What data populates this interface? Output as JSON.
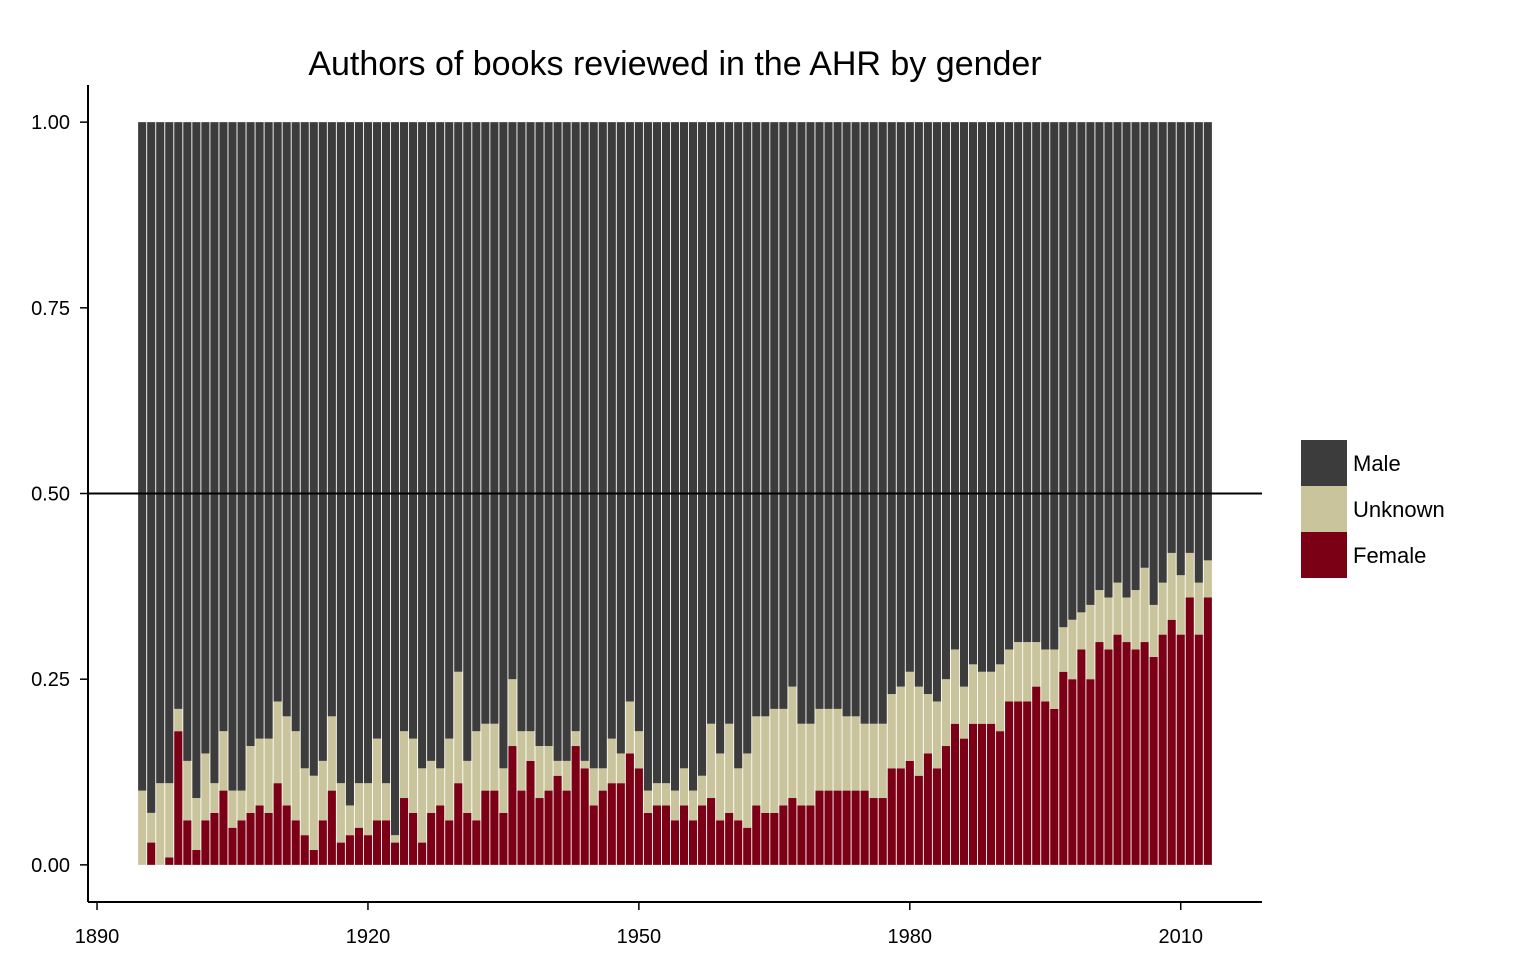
{
  "chart_data": {
    "type": "bar",
    "stacked": true,
    "normalized": true,
    "title": "Authors of books reviewed in the AHR by gender",
    "xlabel": "",
    "ylabel": "",
    "xlim": [
      1889,
      2019
    ],
    "ylim": [
      -0.05,
      1.05
    ],
    "x_ticks": [
      "1890",
      "1920",
      "1950",
      "1980",
      "2010"
    ],
    "y_ticks": [
      "0.00",
      "0.25",
      "0.50",
      "0.75",
      "1.00"
    ],
    "reference_line": 0.5,
    "legend_position": "right",
    "x": [
      1895,
      1896,
      1897,
      1898,
      1899,
      1900,
      1901,
      1902,
      1903,
      1904,
      1905,
      1906,
      1907,
      1908,
      1909,
      1910,
      1911,
      1912,
      1913,
      1914,
      1915,
      1916,
      1917,
      1918,
      1919,
      1920,
      1921,
      1922,
      1923,
      1924,
      1925,
      1926,
      1927,
      1928,
      1929,
      1930,
      1931,
      1932,
      1933,
      1934,
      1935,
      1936,
      1937,
      1938,
      1939,
      1940,
      1941,
      1942,
      1943,
      1944,
      1945,
      1946,
      1947,
      1948,
      1949,
      1950,
      1951,
      1952,
      1953,
      1954,
      1955,
      1956,
      1957,
      1958,
      1959,
      1960,
      1961,
      1962,
      1963,
      1964,
      1965,
      1966,
      1967,
      1968,
      1969,
      1970,
      1971,
      1972,
      1973,
      1974,
      1975,
      1976,
      1977,
      1978,
      1979,
      1980,
      1981,
      1982,
      1983,
      1984,
      1985,
      1986,
      1987,
      1988,
      1989,
      1990,
      1991,
      1992,
      1993,
      1994,
      1995,
      1996,
      1997,
      1998,
      1999,
      2000,
      2001,
      2002,
      2003,
      2004,
      2005,
      2006,
      2007,
      2008,
      2009,
      2010,
      2011,
      2012,
      2013
    ],
    "series": [
      {
        "name": "Female",
        "color": "#7b0016",
        "values": [
          0.0,
          0.03,
          0.0,
          0.01,
          0.18,
          0.06,
          0.02,
          0.06,
          0.07,
          0.1,
          0.05,
          0.06,
          0.07,
          0.08,
          0.07,
          0.11,
          0.08,
          0.06,
          0.04,
          0.02,
          0.06,
          0.1,
          0.03,
          0.04,
          0.05,
          0.04,
          0.06,
          0.06,
          0.03,
          0.09,
          0.07,
          0.03,
          0.07,
          0.08,
          0.06,
          0.11,
          0.07,
          0.06,
          0.1,
          0.1,
          0.07,
          0.16,
          0.1,
          0.14,
          0.09,
          0.1,
          0.12,
          0.1,
          0.16,
          0.13,
          0.08,
          0.1,
          0.11,
          0.11,
          0.15,
          0.13,
          0.07,
          0.08,
          0.08,
          0.06,
          0.08,
          0.06,
          0.08,
          0.09,
          0.06,
          0.07,
          0.06,
          0.05,
          0.08,
          0.07,
          0.07,
          0.08,
          0.09,
          0.08,
          0.08,
          0.1,
          0.1,
          0.1,
          0.1,
          0.1,
          0.1,
          0.09,
          0.09,
          0.13,
          0.13,
          0.14,
          0.12,
          0.15,
          0.13,
          0.16,
          0.19,
          0.17,
          0.19,
          0.19,
          0.19,
          0.18,
          0.22,
          0.22,
          0.22,
          0.24,
          0.22,
          0.21,
          0.26,
          0.25,
          0.29,
          0.25,
          0.3,
          0.29,
          0.31,
          0.3,
          0.29,
          0.3,
          0.28,
          0.31,
          0.33,
          0.31,
          0.36,
          0.31,
          0.36
        ]
      },
      {
        "name": "Unknown",
        "color": "#c9c49c",
        "values": [
          0.1,
          0.04,
          0.11,
          0.1,
          0.03,
          0.08,
          0.07,
          0.09,
          0.04,
          0.08,
          0.05,
          0.04,
          0.09,
          0.09,
          0.1,
          0.11,
          0.12,
          0.12,
          0.09,
          0.1,
          0.08,
          0.1,
          0.08,
          0.04,
          0.06,
          0.07,
          0.11,
          0.05,
          0.01,
          0.09,
          0.1,
          0.1,
          0.07,
          0.05,
          0.11,
          0.15,
          0.07,
          0.12,
          0.09,
          0.09,
          0.06,
          0.09,
          0.08,
          0.04,
          0.07,
          0.06,
          0.02,
          0.04,
          0.02,
          0.01,
          0.05,
          0.03,
          0.06,
          0.04,
          0.07,
          0.05,
          0.03,
          0.03,
          0.03,
          0.04,
          0.05,
          0.04,
          0.04,
          0.1,
          0.09,
          0.12,
          0.07,
          0.1,
          0.12,
          0.13,
          0.14,
          0.13,
          0.15,
          0.11,
          0.11,
          0.11,
          0.11,
          0.11,
          0.1,
          0.1,
          0.09,
          0.1,
          0.1,
          0.1,
          0.11,
          0.12,
          0.12,
          0.08,
          0.09,
          0.09,
          0.1,
          0.07,
          0.08,
          0.07,
          0.07,
          0.09,
          0.07,
          0.08,
          0.08,
          0.06,
          0.07,
          0.08,
          0.06,
          0.08,
          0.05,
          0.1,
          0.07,
          0.07,
          0.07,
          0.06,
          0.08,
          0.1,
          0.07,
          0.07,
          0.09,
          0.08,
          0.06,
          0.07,
          0.05
        ]
      },
      {
        "name": "Male",
        "color": "#3c3c3c",
        "values": [
          0.9,
          0.93,
          0.89,
          0.89,
          0.79,
          0.86,
          0.91,
          0.85,
          0.89,
          0.82,
          0.9,
          0.9,
          0.84,
          0.83,
          0.83,
          0.78,
          0.8,
          0.82,
          0.87,
          0.88,
          0.86,
          0.8,
          0.89,
          0.92,
          0.89,
          0.89,
          0.83,
          0.89,
          0.96,
          0.82,
          0.83,
          0.87,
          0.86,
          0.87,
          0.83,
          0.74,
          0.86,
          0.82,
          0.81,
          0.81,
          0.87,
          0.75,
          0.82,
          0.82,
          0.84,
          0.84,
          0.86,
          0.86,
          0.82,
          0.86,
          0.87,
          0.87,
          0.83,
          0.85,
          0.78,
          0.82,
          0.9,
          0.89,
          0.89,
          0.9,
          0.87,
          0.9,
          0.88,
          0.81,
          0.85,
          0.81,
          0.87,
          0.85,
          0.8,
          0.8,
          0.79,
          0.79,
          0.76,
          0.81,
          0.81,
          0.79,
          0.79,
          0.79,
          0.8,
          0.8,
          0.81,
          0.81,
          0.81,
          0.77,
          0.76,
          0.74,
          0.76,
          0.77,
          0.78,
          0.75,
          0.71,
          0.76,
          0.73,
          0.74,
          0.74,
          0.73,
          0.71,
          0.7,
          0.7,
          0.7,
          0.71,
          0.71,
          0.68,
          0.67,
          0.66,
          0.65,
          0.63,
          0.64,
          0.62,
          0.64,
          0.63,
          0.6,
          0.65,
          0.62,
          0.58,
          0.61,
          0.58,
          0.62,
          0.59
        ]
      }
    ],
    "legend": [
      {
        "name": "Male",
        "color": "#3c3c3c"
      },
      {
        "name": "Unknown",
        "color": "#c9c49c"
      },
      {
        "name": "Female",
        "color": "#7b0016"
      }
    ]
  }
}
